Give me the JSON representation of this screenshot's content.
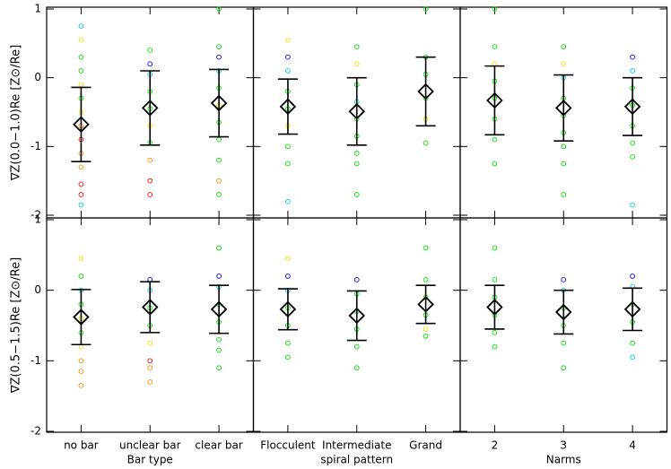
{
  "chart_data": [
    {
      "type": "errorbar",
      "ylabel": "∇Z(0.0−1.0)Re [Z⊙/Re]",
      "ylim": [
        -2,
        1
      ],
      "yticks": [
        -2,
        -1,
        0,
        1
      ],
      "tick_labels": true,
      "values": [
        -0.68,
        -0.44,
        -0.37
      ],
      "errors": [
        0.54,
        0.54,
        0.49
      ],
      "points": [
        {
          "values": [
            0.75,
            0.55,
            0.3,
            0.1,
            -0.1,
            -0.3,
            -0.5,
            -0.7,
            -0.9,
            -1.1,
            -1.3,
            -1.55,
            -1.7,
            -1.85
          ],
          "colors": [
            "#00cccc",
            "#e6e600",
            "#00dd00",
            "#00dd00",
            "#e6e600",
            "#00dd00",
            "#e6e600",
            "#ff8c00",
            "#ff0000",
            "#ff8c00",
            "#ff8c00",
            "#ff0000",
            "#ff0000",
            "#00cccc"
          ]
        },
        {
          "values": [
            0.4,
            0.2,
            0.05,
            -0.2,
            -0.45,
            -0.7,
            -0.95,
            -1.2,
            -1.5,
            -1.7
          ],
          "colors": [
            "#00dd00",
            "#0000ff",
            "#00cccc",
            "#00dd00",
            "#00dd00",
            "#e6e600",
            "#00dd00",
            "#ff8c00",
            "#ff0000",
            "#ff0000"
          ]
        },
        {
          "values": [
            1.0,
            0.45,
            0.3,
            0.1,
            -0.15,
            -0.4,
            -0.65,
            -0.9,
            -1.2,
            -1.5,
            -1.7
          ],
          "colors": [
            "#00dd00",
            "#00dd00",
            "#0000ff",
            "#00cccc",
            "#00dd00",
            "#e6e600",
            "#00dd00",
            "#00dd00",
            "#00dd00",
            "#ff8c00",
            "#00dd00"
          ]
        }
      ]
    },
    {
      "type": "errorbar",
      "ylim": [
        -2,
        1
      ],
      "yticks": [
        -2,
        -1,
        0,
        1
      ],
      "tick_labels": false,
      "values": [
        -0.42,
        -0.49,
        -0.2
      ],
      "errors": [
        0.4,
        0.49,
        0.5
      ],
      "points": [
        {
          "values": [
            0.55,
            0.3,
            0.1,
            -0.2,
            -0.45,
            -0.7,
            -1.0,
            -1.25,
            -1.8
          ],
          "colors": [
            "#e6e600",
            "#0000ff",
            "#00cccc",
            "#00dd00",
            "#00dd00",
            "#e6e600",
            "#00dd00",
            "#00dd00",
            "#00cccc"
          ]
        },
        {
          "values": [
            0.45,
            0.2,
            -0.1,
            -0.35,
            -0.6,
            -0.85,
            -1.1,
            -1.25,
            -1.7
          ],
          "colors": [
            "#00dd00",
            "#e6e600",
            "#00dd00",
            "#00cccc",
            "#00dd00",
            "#00dd00",
            "#00dd00",
            "#00dd00",
            "#00dd00"
          ]
        },
        {
          "values": [
            1.0,
            0.3,
            0.05,
            -0.3,
            -0.6,
            -0.95
          ],
          "colors": [
            "#00dd00",
            "#00dd00",
            "#00dd00",
            "#00dd00",
            "#e6e600",
            "#00dd00"
          ]
        }
      ]
    },
    {
      "type": "errorbar",
      "ylim": [
        -2,
        1
      ],
      "yticks": [
        -2,
        -1,
        0,
        1
      ],
      "tick_labels": false,
      "values": [
        -0.33,
        -0.44,
        -0.42
      ],
      "errors": [
        0.5,
        0.48,
        0.42
      ],
      "points": [
        {
          "values": [
            1.0,
            0.45,
            0.2,
            -0.05,
            -0.3,
            -0.6,
            -0.9,
            -1.25
          ],
          "colors": [
            "#00dd00",
            "#00dd00",
            "#e6e600",
            "#00dd00",
            "#00dd00",
            "#00dd00",
            "#00dd00",
            "#00dd00"
          ]
        },
        {
          "values": [
            0.45,
            0.2,
            0.0,
            -0.3,
            -0.55,
            -0.8,
            -1.0,
            -1.25,
            -1.7
          ],
          "colors": [
            "#00dd00",
            "#e6e600",
            "#00cccc",
            "#00dd00",
            "#00dd00",
            "#00dd00",
            "#00dd00",
            "#00dd00",
            "#00dd00"
          ]
        },
        {
          "values": [
            0.3,
            0.1,
            -0.15,
            -0.4,
            -0.7,
            -0.95,
            -1.15,
            -1.85
          ],
          "colors": [
            "#0000ff",
            "#00cccc",
            "#00dd00",
            "#00dd00",
            "#00dd00",
            "#00dd00",
            "#00dd00",
            "#00cccc"
          ]
        }
      ]
    },
    {
      "type": "errorbar",
      "ylabel": "∇Z(0.5−1.5)Re [Z⊙/Re]",
      "xlabel": "Bar type",
      "categories": [
        "no bar",
        "unclear bar",
        "clear bar"
      ],
      "ylim": [
        -2,
        1
      ],
      "yticks": [
        -2,
        -1,
        0,
        1
      ],
      "tick_labels": true,
      "values": [
        -0.38,
        -0.24,
        -0.27
      ],
      "errors": [
        0.39,
        0.36,
        0.34
      ],
      "points": [
        {
          "values": [
            0.45,
            0.2,
            0.0,
            -0.2,
            -0.4,
            -0.6,
            -0.8,
            -1.0,
            -1.15,
            -1.35
          ],
          "colors": [
            "#e6e600",
            "#00dd00",
            "#00cccc",
            "#00dd00",
            "#e6e600",
            "#00dd00",
            "#e6e600",
            "#ff8c00",
            "#ff8c00",
            "#ff8c00"
          ]
        },
        {
          "values": [
            0.15,
            0.0,
            -0.25,
            -0.5,
            -0.75,
            -1.0,
            -1.1,
            -1.3
          ],
          "colors": [
            "#0000ff",
            "#00cccc",
            "#00dd00",
            "#00dd00",
            "#e6e600",
            "#ff0000",
            "#ff8c00",
            "#ff8c00"
          ]
        },
        {
          "values": [
            0.6,
            0.2,
            0.05,
            -0.2,
            -0.45,
            -0.7,
            -0.85,
            -1.1
          ],
          "colors": [
            "#00dd00",
            "#0000ff",
            "#00cccc",
            "#00dd00",
            "#00dd00",
            "#00dd00",
            "#00dd00",
            "#00dd00"
          ]
        }
      ]
    },
    {
      "type": "errorbar",
      "xlabel": "spiral pattern",
      "categories": [
        "Flocculent",
        "Intermediate",
        "Grand"
      ],
      "ylim": [
        -2,
        1
      ],
      "yticks": [
        -2,
        -1,
        0,
        1
      ],
      "tick_labels": false,
      "values": [
        -0.27,
        -0.36,
        -0.2
      ],
      "errors": [
        0.29,
        0.35,
        0.27
      ],
      "points": [
        {
          "values": [
            0.45,
            0.2,
            0.0,
            -0.25,
            -0.5,
            -0.75,
            -0.95
          ],
          "colors": [
            "#e6e600",
            "#0000ff",
            "#00cccc",
            "#00dd00",
            "#00dd00",
            "#00dd00",
            "#00dd00"
          ]
        },
        {
          "values": [
            0.15,
            -0.05,
            -0.3,
            -0.55,
            -0.8,
            -1.1
          ],
          "colors": [
            "#0000ff",
            "#00dd00",
            "#00dd00",
            "#00dd00",
            "#00dd00",
            "#00dd00"
          ]
        },
        {
          "values": [
            0.6,
            0.15,
            -0.1,
            -0.35,
            -0.55,
            -0.65
          ],
          "colors": [
            "#00dd00",
            "#00dd00",
            "#00dd00",
            "#00dd00",
            "#e6e600",
            "#00dd00"
          ]
        }
      ]
    },
    {
      "type": "errorbar",
      "xlabel": "Narms",
      "categories": [
        "2",
        "3",
        "4"
      ],
      "ylim": [
        -2,
        1
      ],
      "yticks": [
        -2,
        -1,
        0,
        1
      ],
      "tick_labels": false,
      "values": [
        -0.24,
        -0.31,
        -0.27
      ],
      "errors": [
        0.31,
        0.31,
        0.3
      ],
      "points": [
        {
          "values": [
            0.6,
            0.15,
            -0.1,
            -0.35,
            -0.6,
            -0.8
          ],
          "colors": [
            "#00dd00",
            "#00dd00",
            "#00dd00",
            "#00dd00",
            "#00dd00",
            "#00dd00"
          ]
        },
        {
          "values": [
            0.15,
            0.0,
            -0.25,
            -0.5,
            -0.75,
            -1.1
          ],
          "colors": [
            "#0000ff",
            "#00cccc",
            "#00dd00",
            "#00dd00",
            "#00dd00",
            "#00dd00"
          ]
        },
        {
          "values": [
            0.2,
            0.05,
            -0.2,
            -0.45,
            -0.75,
            -0.95
          ],
          "colors": [
            "#0000ff",
            "#00cccc",
            "#00dd00",
            "#00dd00",
            "#00dd00",
            "#00cccc"
          ]
        }
      ]
    }
  ]
}
